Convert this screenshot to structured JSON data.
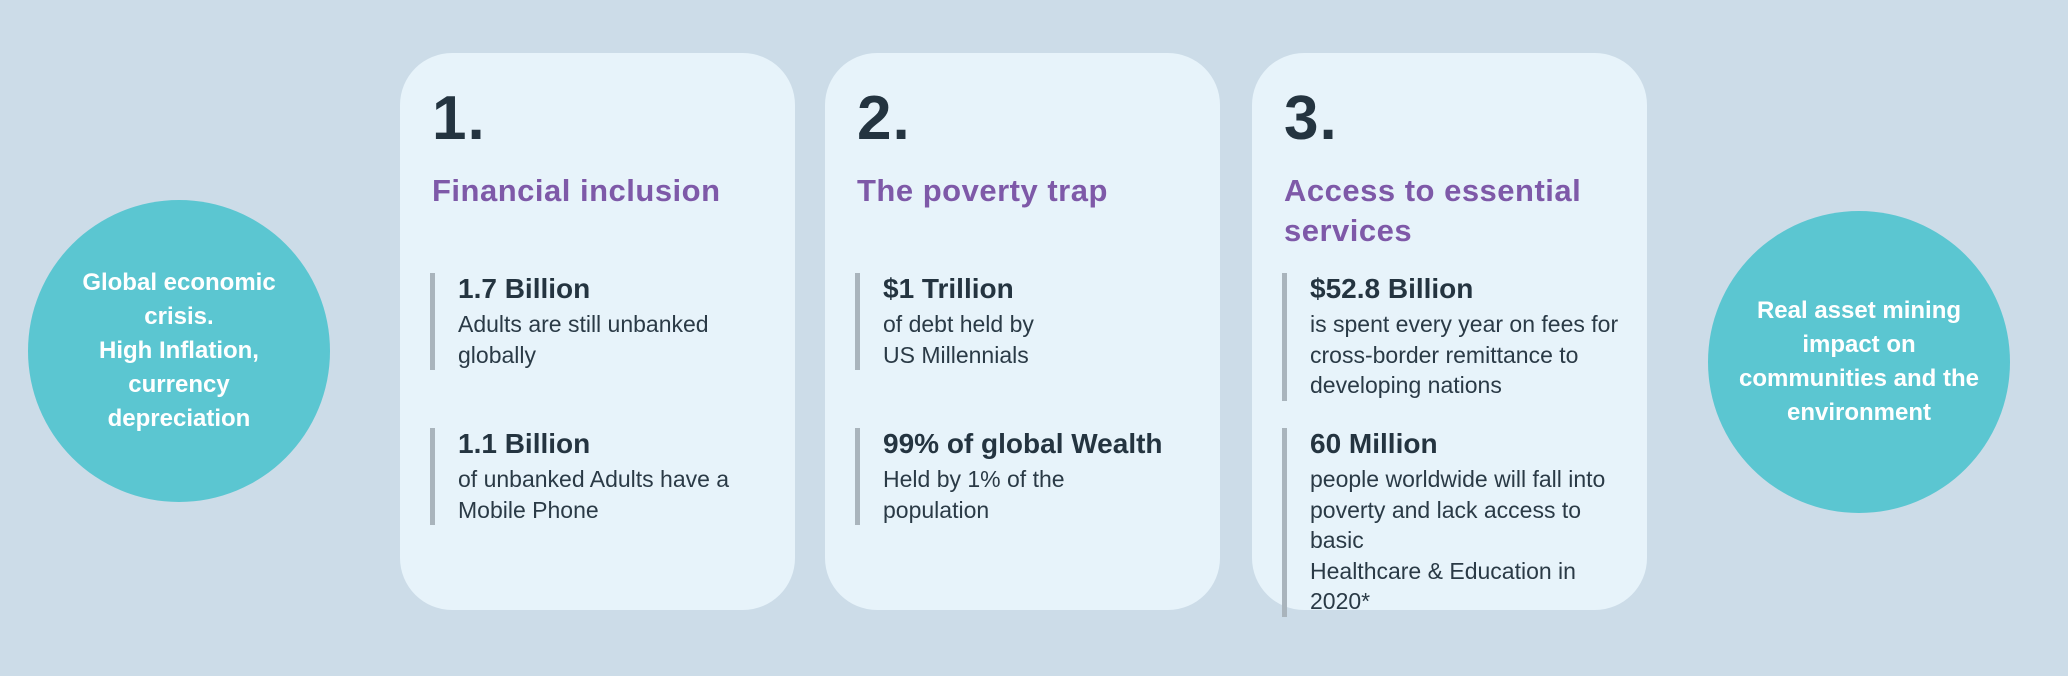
{
  "colors": {
    "page_background": "#ccdce8",
    "card_background": "#e7f3fa",
    "circle_teal": "#5bc6d1",
    "heading_purple": "#7e59a8",
    "text_dark": "#243440",
    "stat_bar_gray": "#a9b4bc",
    "circle_text_white": "#ffffff"
  },
  "left_circle": {
    "text": "Global economic\ncrisis.\nHigh Inflation,\ncurrency\ndepreciation"
  },
  "right_circle": {
    "text": "Real asset  mining\nimpact on\ncommunities and the\nenvironment"
  },
  "cards": [
    {
      "number": "1.",
      "heading": "Financial inclusion",
      "stats": [
        {
          "value": "1.7 Billion",
          "description": "Adults are still unbanked\nglobally"
        },
        {
          "value": "1.1 Billion",
          "description": "of unbanked Adults have a\nMobile Phone"
        }
      ]
    },
    {
      "number": "2.",
      "heading": "The poverty trap",
      "stats": [
        {
          "value": "$1 Trillion",
          "description": "of debt held by\nUS Millennials"
        },
        {
          "value": "99% of global Wealth",
          "description": "Held by 1% of the\npopulation"
        }
      ]
    },
    {
      "number": "3.",
      "heading": "Access to essential\nservices",
      "stats": [
        {
          "value": "$52.8 Billion",
          "description": "is spent every year on fees for\ncross-border remittance to\ndeveloping nations"
        },
        {
          "value": "60 Million",
          "description": "people worldwide will fall into\npoverty and lack access to basic\nHealthcare & Education in 2020*"
        }
      ]
    }
  ]
}
